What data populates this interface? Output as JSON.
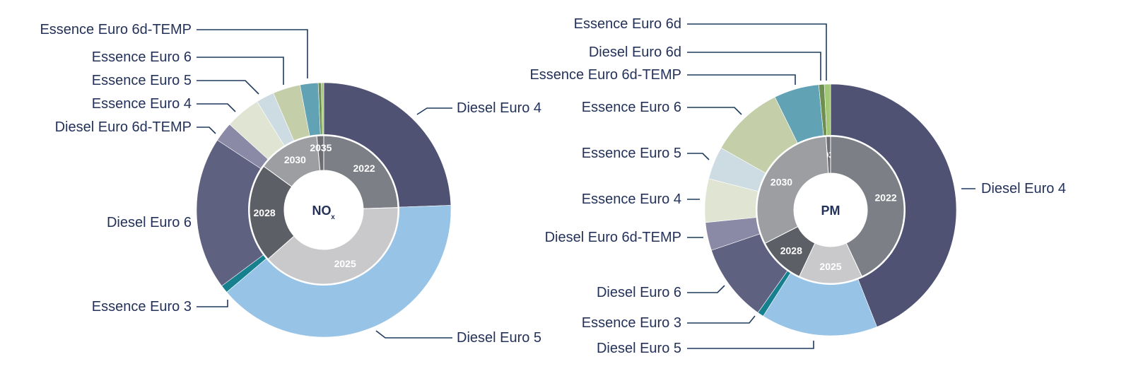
{
  "colors": {
    "Diesel Euro 4": "#4f5273",
    "Diesel Euro 5": "#97c3e6",
    "Essence Euro 3": "#17808f",
    "Diesel Euro 6": "#5e6180",
    "Diesel Euro 6d-TEMP": "#8a89a6",
    "Essence Euro 4": "#e0e5d3",
    "Essence Euro 5": "#cddbe3",
    "Essence Euro 6": "#c4cfaa",
    "Essence Euro 6d-TEMP": "#61a2b4",
    "Diesel Euro 6d": "#6e8f50",
    "Essence Euro 6d": "#a3c876",
    "2022": "#7d7f86",
    "2025": "#c9c9cc",
    "2028": "#5d5f66",
    "2030": "#9d9ea2",
    "2035": "#6c6e74"
  },
  "chart_data": [
    {
      "type": "pie",
      "center_label": "NO",
      "center_subscript": "x",
      "outer_series": [
        {
          "label": "Diesel Euro 4",
          "value": 24.5
        },
        {
          "label": "Diesel Euro 5",
          "value": 39.5
        },
        {
          "label": "Essence Euro 3",
          "value": 1.0
        },
        {
          "label": "Diesel Euro 6",
          "value": 19.5
        },
        {
          "label": "Diesel Euro 6d-TEMP",
          "value": 2.5
        },
        {
          "label": "Essence Euro 4",
          "value": 4.5
        },
        {
          "label": "Essence Euro 5",
          "value": 2.3
        },
        {
          "label": "Essence Euro 6",
          "value": 3.5
        },
        {
          "label": "Essence Euro 6d-TEMP",
          "value": 2.3
        },
        {
          "label": "Diesel Euro 6d",
          "value": 0.4
        },
        {
          "label": "Essence Euro 6d",
          "value": 0.3
        }
      ],
      "inner_series": [
        {
          "label": "2022",
          "value": 24.5
        },
        {
          "label": "2025",
          "value": 39.0
        },
        {
          "label": "2028",
          "value": 21.5
        },
        {
          "label": "2030",
          "value": 13.5
        },
        {
          "label": "2035",
          "value": 1.5
        }
      ]
    },
    {
      "type": "pie",
      "center_label": "PM",
      "center_subscript": "",
      "outer_series": [
        {
          "label": "Diesel Euro 4",
          "value": 44.0
        },
        {
          "label": "Diesel Euro 5",
          "value": 15.0
        },
        {
          "label": "Essence Euro 3",
          "value": 0.8
        },
        {
          "label": "Diesel Euro 6",
          "value": 10.0
        },
        {
          "label": "Diesel Euro 6d-TEMP",
          "value": 3.6
        },
        {
          "label": "Essence Euro 4",
          "value": 5.6
        },
        {
          "label": "Essence Euro 5",
          "value": 4.2
        },
        {
          "label": "Essence Euro 6",
          "value": 9.5
        },
        {
          "label": "Essence Euro 6d-TEMP",
          "value": 5.8
        },
        {
          "label": "Diesel Euro 6d",
          "value": 0.7
        },
        {
          "label": "Essence Euro 6d",
          "value": 0.8
        }
      ],
      "inner_series": [
        {
          "label": "2035",
          "value": 1.0
        },
        {
          "label": "2022",
          "value": 43.0
        },
        {
          "label": "2025",
          "value": 14.0
        },
        {
          "label": "2028",
          "value": 10.5
        },
        {
          "label": "2030",
          "value": 31.5
        }
      ]
    }
  ]
}
